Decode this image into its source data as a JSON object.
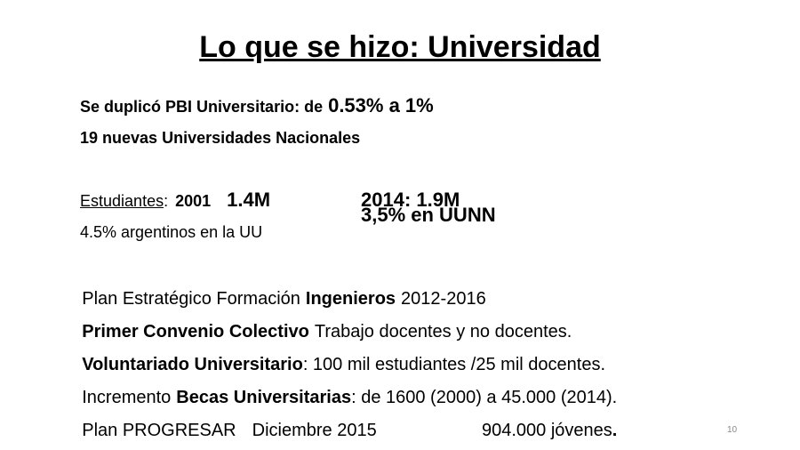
{
  "title": "Lo que se hizo: Universidad",
  "lines": [
    [
      "Se duplicó PBI Universitario: de",
      "0.53% a 1%"
    ],
    [
      "19 nuevas Universidades Nacionales"
    ],
    [
      "Estudiantes",
      ":",
      "2001",
      "1.4M",
      "2014: 1.9M"
    ],
    [
      "4.5% argentinos en la UU",
      "3,5% en UUNN"
    ],
    [
      "Plan Estratégico Formación",
      "Ingenieros",
      "2012-2016"
    ],
    [
      "Primer Convenio Colectivo",
      "Trabajo docentes y no docentes."
    ],
    [
      "Voluntariado Universitario",
      ": 100 mil estudiantes /25 mil docentes."
    ],
    [
      "Incremento",
      "Becas Universitarias",
      ": de 1600 (2000) a 45.000 (2014)."
    ],
    [
      "Plan PROGRESAR",
      "Diciembre 2015",
      "904.000 jóvenes",
      "."
    ]
  ],
  "page_number": "10"
}
